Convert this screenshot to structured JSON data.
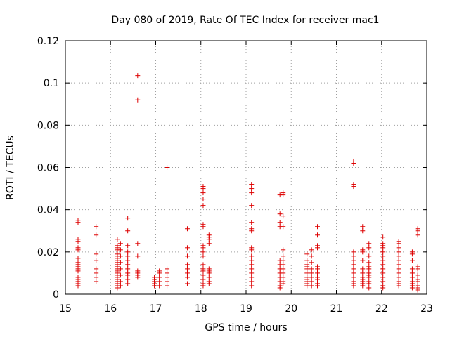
{
  "chart_data": {
    "type": "scatter",
    "title": "Day 080 of 2019, Rate Of TEC Index for receiver mac1",
    "xlabel": "GPS time / hours",
    "ylabel": "ROTI / TECUs",
    "xlim": [
      15,
      23
    ],
    "ylim": [
      0,
      0.12
    ],
    "x_ticks": [
      "15",
      "16",
      "17",
      "18",
      "19",
      "20",
      "21",
      "22",
      "23"
    ],
    "y_ticks": [
      "0",
      "0.02",
      "0.04",
      "0.06",
      "0.08",
      "0.1",
      "0.12"
    ],
    "grid": true,
    "marker": "+",
    "colors": {
      "points": "#dd0000",
      "grid": "#a0a0a0",
      "axes": "#000000"
    },
    "series": [
      {
        "name": "ROTI",
        "points": [
          [
            15.28,
            0.035
          ],
          [
            15.28,
            0.034
          ],
          [
            15.28,
            0.026
          ],
          [
            15.28,
            0.025
          ],
          [
            15.28,
            0.022
          ],
          [
            15.28,
            0.021
          ],
          [
            15.28,
            0.017
          ],
          [
            15.28,
            0.015
          ],
          [
            15.28,
            0.014
          ],
          [
            15.28,
            0.013
          ],
          [
            15.28,
            0.012
          ],
          [
            15.28,
            0.011
          ],
          [
            15.28,
            0.008
          ],
          [
            15.28,
            0.007
          ],
          [
            15.28,
            0.006
          ],
          [
            15.28,
            0.005
          ],
          [
            15.28,
            0.004
          ],
          [
            15.68,
            0.032
          ],
          [
            15.68,
            0.028
          ],
          [
            15.68,
            0.019
          ],
          [
            15.68,
            0.016
          ],
          [
            15.68,
            0.012
          ],
          [
            15.68,
            0.01
          ],
          [
            15.68,
            0.008
          ],
          [
            15.68,
            0.006
          ],
          [
            16.15,
            0.026
          ],
          [
            16.15,
            0.023
          ],
          [
            16.15,
            0.022
          ],
          [
            16.15,
            0.021
          ],
          [
            16.15,
            0.019
          ],
          [
            16.15,
            0.018
          ],
          [
            16.15,
            0.017
          ],
          [
            16.15,
            0.016
          ],
          [
            16.15,
            0.015
          ],
          [
            16.15,
            0.014
          ],
          [
            16.15,
            0.013
          ],
          [
            16.15,
            0.012
          ],
          [
            16.15,
            0.011
          ],
          [
            16.15,
            0.01
          ],
          [
            16.15,
            0.009
          ],
          [
            16.15,
            0.008
          ],
          [
            16.15,
            0.007
          ],
          [
            16.15,
            0.006
          ],
          [
            16.15,
            0.005
          ],
          [
            16.15,
            0.004
          ],
          [
            16.15,
            0.003
          ],
          [
            16.22,
            0.024
          ],
          [
            16.22,
            0.021
          ],
          [
            16.22,
            0.018
          ],
          [
            16.22,
            0.015
          ],
          [
            16.22,
            0.012
          ],
          [
            16.22,
            0.009
          ],
          [
            16.22,
            0.006
          ],
          [
            16.22,
            0.004
          ],
          [
            16.38,
            0.036
          ],
          [
            16.38,
            0.03
          ],
          [
            16.38,
            0.023
          ],
          [
            16.38,
            0.02
          ],
          [
            16.38,
            0.018
          ],
          [
            16.38,
            0.016
          ],
          [
            16.38,
            0.014
          ],
          [
            16.38,
            0.012
          ],
          [
            16.38,
            0.01
          ],
          [
            16.38,
            0.009
          ],
          [
            16.38,
            0.007
          ],
          [
            16.38,
            0.005
          ],
          [
            16.6,
            0.1035
          ],
          [
            16.6,
            0.092
          ],
          [
            16.6,
            0.024
          ],
          [
            16.6,
            0.018
          ],
          [
            16.6,
            0.011
          ],
          [
            16.6,
            0.01
          ],
          [
            16.6,
            0.009
          ],
          [
            16.6,
            0.008
          ],
          [
            16.97,
            0.008
          ],
          [
            16.97,
            0.007
          ],
          [
            16.97,
            0.006
          ],
          [
            16.97,
            0.005
          ],
          [
            16.97,
            0.004
          ],
          [
            17.08,
            0.011
          ],
          [
            17.08,
            0.01
          ],
          [
            17.08,
            0.008
          ],
          [
            17.08,
            0.006
          ],
          [
            17.08,
            0.004
          ],
          [
            17.25,
            0.06
          ],
          [
            17.25,
            0.012
          ],
          [
            17.25,
            0.01
          ],
          [
            17.25,
            0.008
          ],
          [
            17.25,
            0.006
          ],
          [
            17.25,
            0.004
          ],
          [
            17.7,
            0.031
          ],
          [
            17.7,
            0.022
          ],
          [
            17.7,
            0.018
          ],
          [
            17.7,
            0.014
          ],
          [
            17.7,
            0.012
          ],
          [
            17.7,
            0.01
          ],
          [
            17.7,
            0.008
          ],
          [
            17.7,
            0.005
          ],
          [
            18.05,
            0.051
          ],
          [
            18.05,
            0.05
          ],
          [
            18.05,
            0.048
          ],
          [
            18.05,
            0.045
          ],
          [
            18.05,
            0.042
          ],
          [
            18.05,
            0.033
          ],
          [
            18.05,
            0.032
          ],
          [
            18.05,
            0.023
          ],
          [
            18.05,
            0.022
          ],
          [
            18.05,
            0.02
          ],
          [
            18.05,
            0.018
          ],
          [
            18.05,
            0.014
          ],
          [
            18.05,
            0.012
          ],
          [
            18.05,
            0.011
          ],
          [
            18.05,
            0.009
          ],
          [
            18.05,
            0.007
          ],
          [
            18.05,
            0.005
          ],
          [
            18.05,
            0.004
          ],
          [
            18.18,
            0.028
          ],
          [
            18.18,
            0.027
          ],
          [
            18.18,
            0.026
          ],
          [
            18.18,
            0.024
          ],
          [
            18.18,
            0.012
          ],
          [
            18.18,
            0.011
          ],
          [
            18.18,
            0.01
          ],
          [
            18.18,
            0.008
          ],
          [
            18.18,
            0.006
          ],
          [
            18.18,
            0.005
          ],
          [
            19.12,
            0.052
          ],
          [
            19.12,
            0.05
          ],
          [
            19.12,
            0.048
          ],
          [
            19.12,
            0.042
          ],
          [
            19.12,
            0.034
          ],
          [
            19.12,
            0.031
          ],
          [
            19.12,
            0.03
          ],
          [
            19.12,
            0.022
          ],
          [
            19.12,
            0.021
          ],
          [
            19.12,
            0.018
          ],
          [
            19.12,
            0.016
          ],
          [
            19.12,
            0.014
          ],
          [
            19.12,
            0.012
          ],
          [
            19.12,
            0.01
          ],
          [
            19.12,
            0.008
          ],
          [
            19.12,
            0.006
          ],
          [
            19.12,
            0.004
          ],
          [
            19.75,
            0.047
          ],
          [
            19.75,
            0.038
          ],
          [
            19.75,
            0.034
          ],
          [
            19.75,
            0.032
          ],
          [
            19.75,
            0.016
          ],
          [
            19.75,
            0.014
          ],
          [
            19.75,
            0.012
          ],
          [
            19.75,
            0.01
          ],
          [
            19.75,
            0.008
          ],
          [
            19.75,
            0.006
          ],
          [
            19.75,
            0.004
          ],
          [
            19.75,
            0.003
          ],
          [
            19.82,
            0.048
          ],
          [
            19.82,
            0.047
          ],
          [
            19.82,
            0.037
          ],
          [
            19.82,
            0.032
          ],
          [
            19.82,
            0.021
          ],
          [
            19.82,
            0.018
          ],
          [
            19.82,
            0.016
          ],
          [
            19.82,
            0.014
          ],
          [
            19.82,
            0.012
          ],
          [
            19.82,
            0.01
          ],
          [
            19.82,
            0.008
          ],
          [
            19.82,
            0.006
          ],
          [
            19.82,
            0.005
          ],
          [
            20.35,
            0.019
          ],
          [
            20.35,
            0.016
          ],
          [
            20.35,
            0.014
          ],
          [
            20.35,
            0.013
          ],
          [
            20.35,
            0.012
          ],
          [
            20.35,
            0.01
          ],
          [
            20.35,
            0.008
          ],
          [
            20.35,
            0.007
          ],
          [
            20.35,
            0.006
          ],
          [
            20.35,
            0.005
          ],
          [
            20.35,
            0.004
          ],
          [
            20.45,
            0.021
          ],
          [
            20.45,
            0.018
          ],
          [
            20.45,
            0.015
          ],
          [
            20.45,
            0.012
          ],
          [
            20.45,
            0.01
          ],
          [
            20.45,
            0.008
          ],
          [
            20.45,
            0.006
          ],
          [
            20.45,
            0.004
          ],
          [
            20.58,
            0.032
          ],
          [
            20.58,
            0.028
          ],
          [
            20.58,
            0.023
          ],
          [
            20.58,
            0.022
          ],
          [
            20.58,
            0.013
          ],
          [
            20.58,
            0.012
          ],
          [
            20.58,
            0.01
          ],
          [
            20.58,
            0.008
          ],
          [
            20.58,
            0.007
          ],
          [
            20.58,
            0.005
          ],
          [
            20.58,
            0.004
          ],
          [
            21.38,
            0.063
          ],
          [
            21.38,
            0.062
          ],
          [
            21.38,
            0.052
          ],
          [
            21.38,
            0.051
          ],
          [
            21.38,
            0.02
          ],
          [
            21.38,
            0.018
          ],
          [
            21.38,
            0.016
          ],
          [
            21.38,
            0.014
          ],
          [
            21.38,
            0.012
          ],
          [
            21.38,
            0.01
          ],
          [
            21.38,
            0.008
          ],
          [
            21.38,
            0.006
          ],
          [
            21.38,
            0.005
          ],
          [
            21.38,
            0.004
          ],
          [
            21.58,
            0.032
          ],
          [
            21.58,
            0.03
          ],
          [
            21.58,
            0.021
          ],
          [
            21.58,
            0.02
          ],
          [
            21.58,
            0.016
          ],
          [
            21.58,
            0.012
          ],
          [
            21.58,
            0.01
          ],
          [
            21.58,
            0.008
          ],
          [
            21.58,
            0.007
          ],
          [
            21.58,
            0.006
          ],
          [
            21.58,
            0.005
          ],
          [
            21.58,
            0.004
          ],
          [
            21.72,
            0.024
          ],
          [
            21.72,
            0.022
          ],
          [
            21.72,
            0.018
          ],
          [
            21.72,
            0.015
          ],
          [
            21.72,
            0.013
          ],
          [
            21.72,
            0.012
          ],
          [
            21.72,
            0.01
          ],
          [
            21.72,
            0.009
          ],
          [
            21.72,
            0.008
          ],
          [
            21.72,
            0.006
          ],
          [
            21.72,
            0.005
          ],
          [
            21.72,
            0.003
          ],
          [
            22.03,
            0.027
          ],
          [
            22.03,
            0.024
          ],
          [
            22.03,
            0.023
          ],
          [
            22.03,
            0.022
          ],
          [
            22.03,
            0.02
          ],
          [
            22.03,
            0.018
          ],
          [
            22.03,
            0.016
          ],
          [
            22.03,
            0.014
          ],
          [
            22.03,
            0.012
          ],
          [
            22.03,
            0.01
          ],
          [
            22.03,
            0.008
          ],
          [
            22.03,
            0.006
          ],
          [
            22.03,
            0.004
          ],
          [
            22.03,
            0.003
          ],
          [
            22.38,
            0.025
          ],
          [
            22.38,
            0.024
          ],
          [
            22.38,
            0.022
          ],
          [
            22.38,
            0.02
          ],
          [
            22.38,
            0.018
          ],
          [
            22.38,
            0.016
          ],
          [
            22.38,
            0.014
          ],
          [
            22.38,
            0.012
          ],
          [
            22.38,
            0.01
          ],
          [
            22.38,
            0.008
          ],
          [
            22.38,
            0.006
          ],
          [
            22.38,
            0.005
          ],
          [
            22.38,
            0.004
          ],
          [
            22.68,
            0.02
          ],
          [
            22.68,
            0.019
          ],
          [
            22.68,
            0.016
          ],
          [
            22.68,
            0.012
          ],
          [
            22.68,
            0.01
          ],
          [
            22.68,
            0.008
          ],
          [
            22.68,
            0.006
          ],
          [
            22.68,
            0.005
          ],
          [
            22.68,
            0.004
          ],
          [
            22.68,
            0.003
          ],
          [
            22.8,
            0.031
          ],
          [
            22.8,
            0.03
          ],
          [
            22.8,
            0.028
          ],
          [
            22.8,
            0.013
          ],
          [
            22.8,
            0.012
          ],
          [
            22.8,
            0.009
          ],
          [
            22.8,
            0.007
          ],
          [
            22.8,
            0.006
          ],
          [
            22.8,
            0.004
          ],
          [
            22.8,
            0.003
          ],
          [
            22.8,
            0.002
          ]
        ]
      }
    ]
  }
}
